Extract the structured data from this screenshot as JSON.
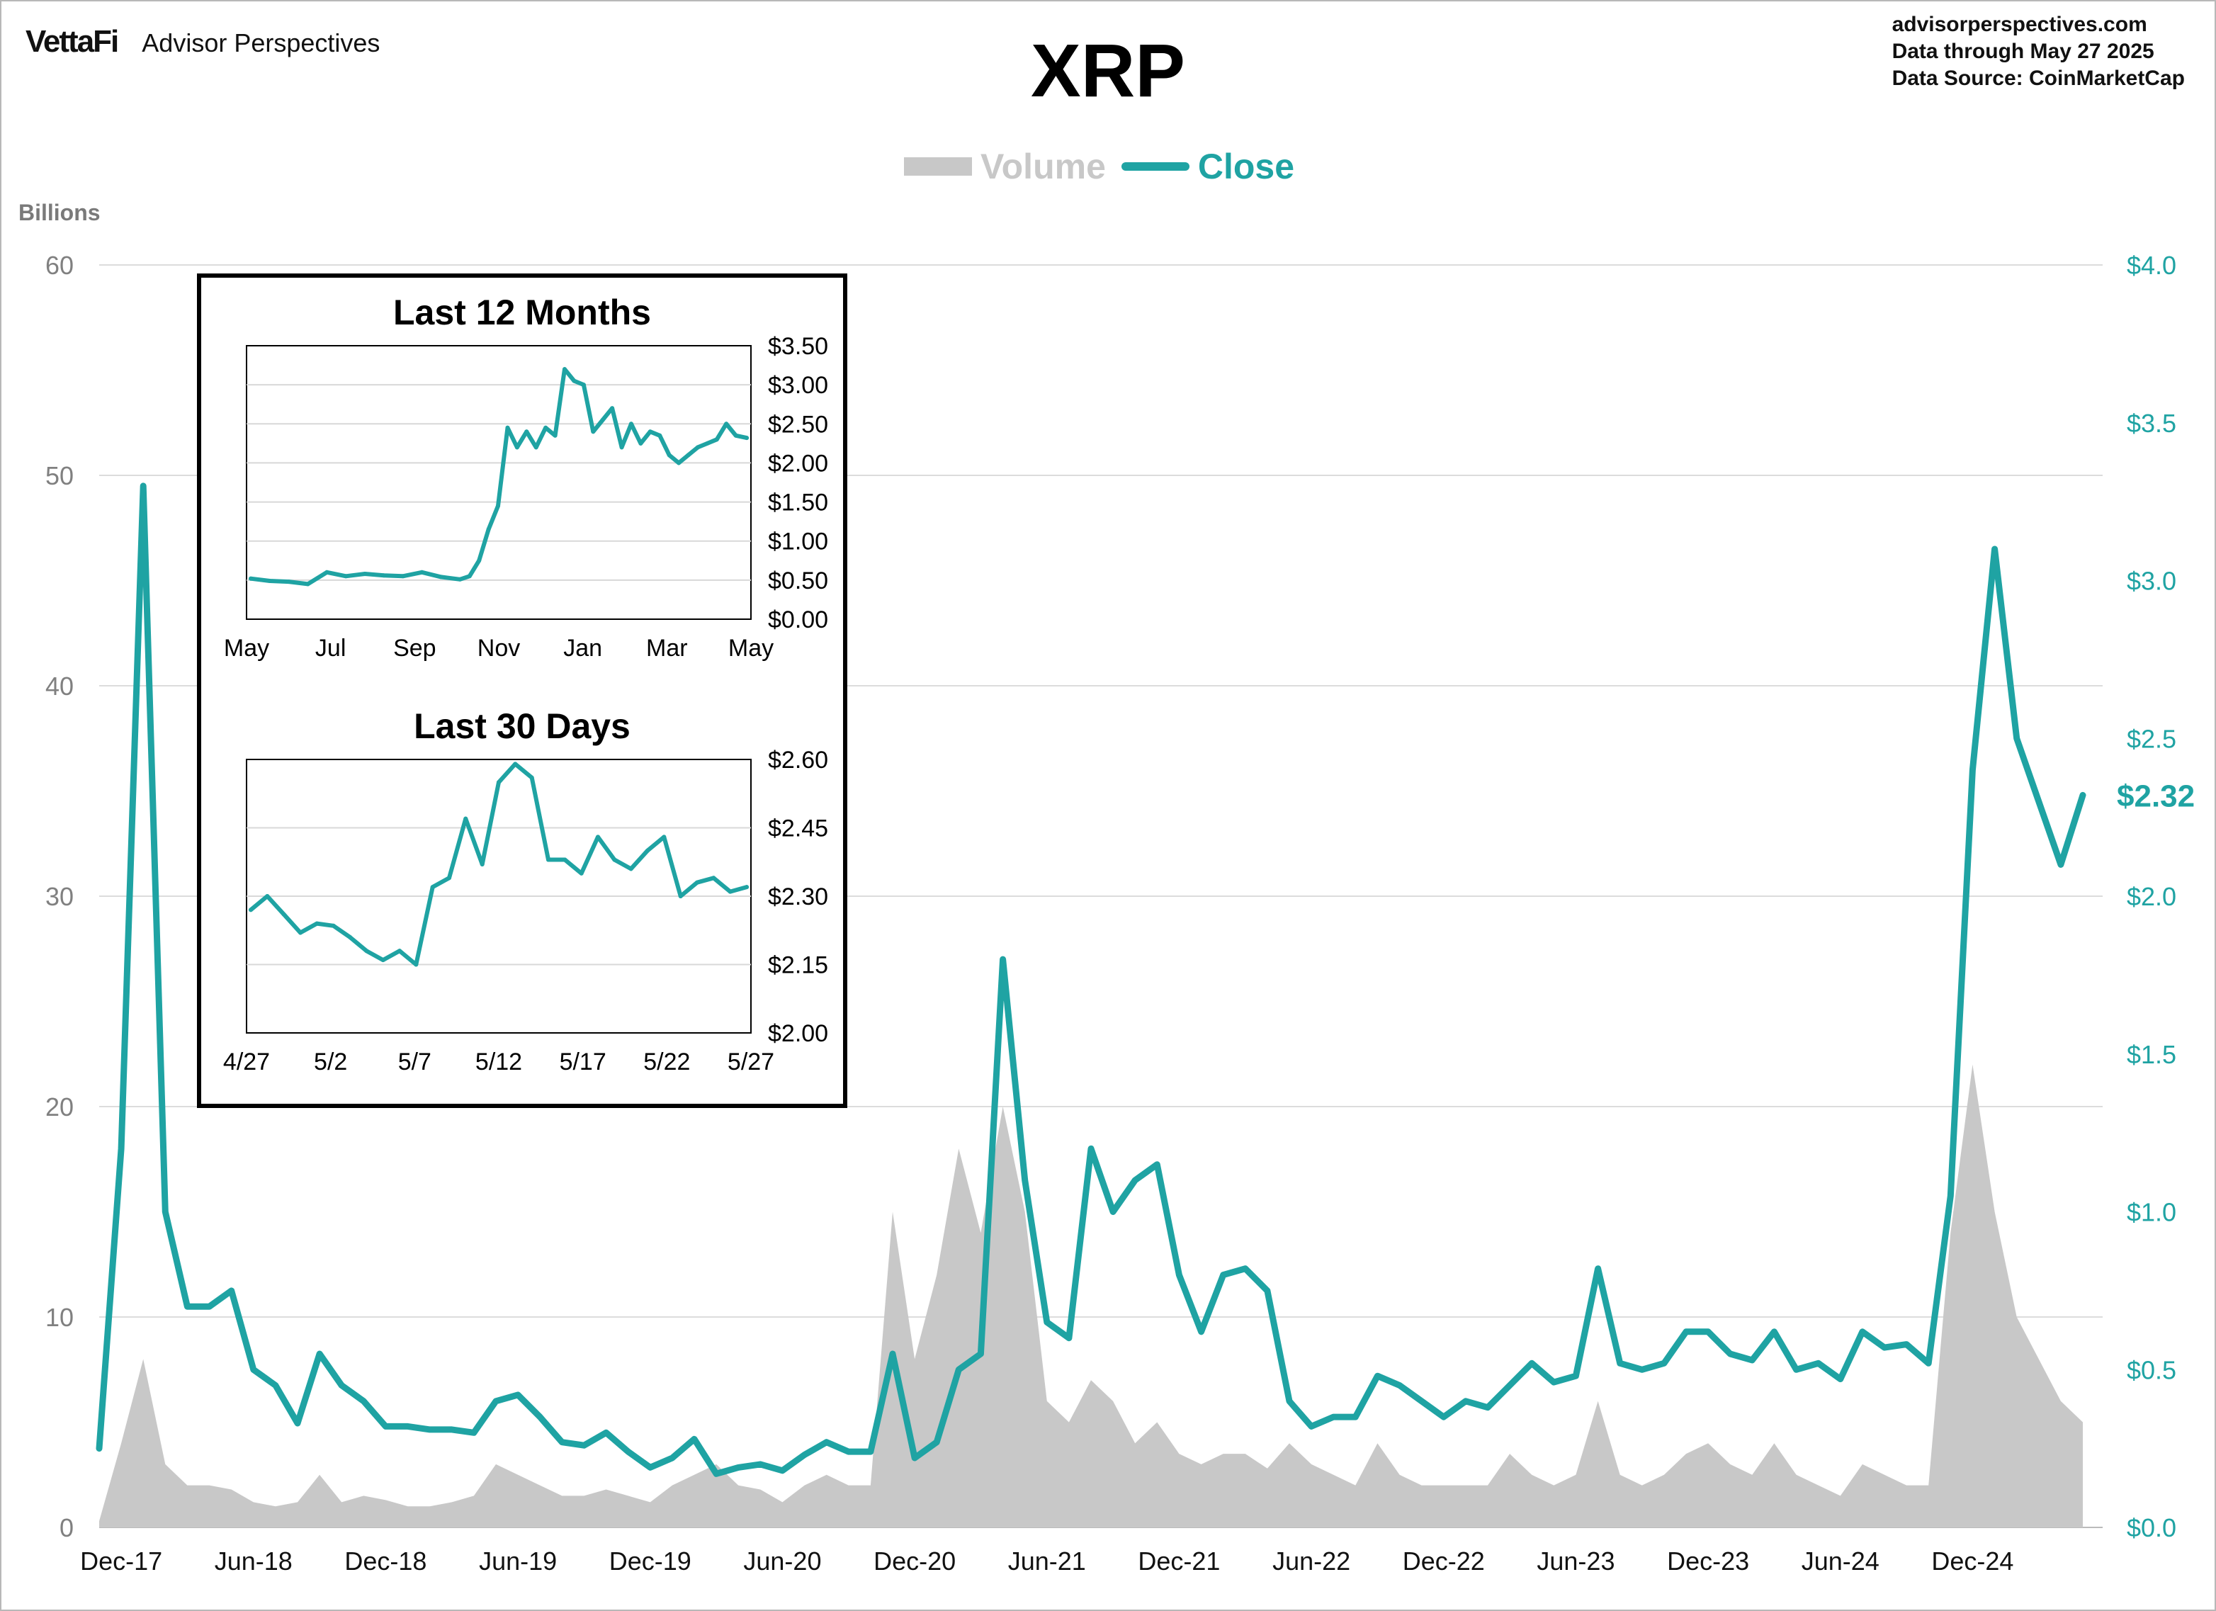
{
  "header": {
    "brand_logo": "VettaFi",
    "brand_name": "Advisor Perspectives",
    "title": "XRP",
    "meta_lines": [
      "advisorperspectives.com",
      "Data through  May 27 2025",
      "Data Source:  CoinMarketCap"
    ]
  },
  "legend": {
    "volume_label": "Volume",
    "close_label": "Close"
  },
  "left_axis_units": "Billions",
  "colors": {
    "close": "#1fa3a3",
    "volume": "#c8c8c8",
    "grid": "#dcdcdc",
    "left_ticks": "#808080"
  },
  "chart_data": [
    {
      "type": "line",
      "title": "XRP",
      "axis_units_left": "Billions",
      "last_value_label": "$2.32",
      "x_tick_labels": [
        "Dec-17",
        "Jun-18",
        "Dec-18",
        "Jun-19",
        "Dec-19",
        "Jun-20",
        "Dec-20",
        "Jun-21",
        "Dec-21",
        "Jun-22",
        "Dec-22",
        "Jun-23",
        "Dec-23",
        "Jun-24",
        "Dec-24"
      ],
      "y_left": {
        "ticks": [
          0,
          10,
          20,
          30,
          40,
          50,
          60
        ],
        "lim": [
          0,
          60
        ]
      },
      "y_right": {
        "tick_labels": [
          "$0.0",
          "$0.5",
          "$1.0",
          "$1.5",
          "$2.0",
          "$2.5",
          "$3.0",
          "$3.5",
          "$4.0"
        ],
        "lim": [
          0,
          4
        ]
      },
      "grid": true,
      "legend_position": "top-center",
      "series": [
        {
          "name": "Close",
          "axis": "right",
          "x": [
            "2017-11",
            "2017-12",
            "2018-01",
            "2018-02",
            "2018-03",
            "2018-04",
            "2018-05",
            "2018-06",
            "2018-07",
            "2018-08",
            "2018-09",
            "2018-10",
            "2018-11",
            "2018-12",
            "2019-01",
            "2019-02",
            "2019-03",
            "2019-04",
            "2019-05",
            "2019-06",
            "2019-07",
            "2019-08",
            "2019-09",
            "2019-10",
            "2019-11",
            "2019-12",
            "2020-01",
            "2020-02",
            "2020-03",
            "2020-04",
            "2020-05",
            "2020-06",
            "2020-07",
            "2020-08",
            "2020-09",
            "2020-10",
            "2020-11",
            "2020-12",
            "2021-01",
            "2021-02",
            "2021-03",
            "2021-04",
            "2021-05",
            "2021-06",
            "2021-07",
            "2021-08",
            "2021-09",
            "2021-10",
            "2021-11",
            "2021-12",
            "2022-01",
            "2022-02",
            "2022-03",
            "2022-04",
            "2022-05",
            "2022-06",
            "2022-07",
            "2022-08",
            "2022-09",
            "2022-10",
            "2022-11",
            "2022-12",
            "2023-01",
            "2023-02",
            "2023-03",
            "2023-04",
            "2023-05",
            "2023-06",
            "2023-07",
            "2023-08",
            "2023-09",
            "2023-10",
            "2023-11",
            "2023-12",
            "2024-01",
            "2024-02",
            "2024-03",
            "2024-04",
            "2024-05",
            "2024-06",
            "2024-07",
            "2024-08",
            "2024-09",
            "2024-10",
            "2024-11",
            "2024-12",
            "2025-01",
            "2025-02",
            "2025-03",
            "2025-04",
            "2025-05"
          ],
          "values": [
            0.25,
            1.2,
            3.3,
            1.0,
            0.7,
            0.7,
            0.75,
            0.5,
            0.45,
            0.33,
            0.55,
            0.45,
            0.4,
            0.32,
            0.32,
            0.31,
            0.31,
            0.3,
            0.4,
            0.42,
            0.35,
            0.27,
            0.26,
            0.3,
            0.24,
            0.19,
            0.22,
            0.28,
            0.17,
            0.19,
            0.2,
            0.18,
            0.23,
            0.27,
            0.24,
            0.24,
            0.55,
            0.22,
            0.27,
            0.5,
            0.55,
            1.8,
            1.1,
            0.65,
            0.6,
            1.2,
            1.0,
            1.1,
            1.15,
            0.8,
            0.62,
            0.8,
            0.82,
            0.75,
            0.4,
            0.32,
            0.35,
            0.35,
            0.48,
            0.45,
            0.4,
            0.35,
            0.4,
            0.38,
            0.45,
            0.52,
            0.46,
            0.48,
            0.82,
            0.52,
            0.5,
            0.52,
            0.62,
            0.62,
            0.55,
            0.53,
            0.62,
            0.5,
            0.52,
            0.47,
            0.62,
            0.57,
            0.58,
            0.52,
            1.05,
            2.4,
            3.1,
            2.5,
            2.3,
            2.1,
            2.32
          ]
        },
        {
          "name": "Volume",
          "axis": "left",
          "unit": "Billions",
          "x": [
            "2017-11",
            "2017-12",
            "2018-01",
            "2018-02",
            "2018-03",
            "2018-04",
            "2018-05",
            "2018-06",
            "2018-07",
            "2018-08",
            "2018-09",
            "2018-10",
            "2018-11",
            "2018-12",
            "2019-01",
            "2019-02",
            "2019-03",
            "2019-04",
            "2019-05",
            "2019-06",
            "2019-07",
            "2019-08",
            "2019-09",
            "2019-10",
            "2019-11",
            "2019-12",
            "2020-01",
            "2020-02",
            "2020-03",
            "2020-04",
            "2020-05",
            "2020-06",
            "2020-07",
            "2020-08",
            "2020-09",
            "2020-10",
            "2020-11",
            "2020-12",
            "2021-01",
            "2021-02",
            "2021-03",
            "2021-04",
            "2021-05",
            "2021-06",
            "2021-07",
            "2021-08",
            "2021-09",
            "2021-10",
            "2021-11",
            "2021-12",
            "2022-01",
            "2022-02",
            "2022-03",
            "2022-04",
            "2022-05",
            "2022-06",
            "2022-07",
            "2022-08",
            "2022-09",
            "2022-10",
            "2022-11",
            "2022-12",
            "2023-01",
            "2023-02",
            "2023-03",
            "2023-04",
            "2023-05",
            "2023-06",
            "2023-07",
            "2023-08",
            "2023-09",
            "2023-10",
            "2023-11",
            "2023-12",
            "2024-01",
            "2024-02",
            "2024-03",
            "2024-04",
            "2024-05",
            "2024-06",
            "2024-07",
            "2024-08",
            "2024-09",
            "2024-10",
            "2024-11",
            "2024-12",
            "2025-01",
            "2025-02",
            "2025-03",
            "2025-04",
            "2025-05"
          ],
          "values": [
            0.3,
            4,
            8,
            3,
            2,
            2,
            1.8,
            1.2,
            1,
            1.2,
            2.5,
            1.2,
            1.5,
            1.3,
            1,
            1,
            1.2,
            1.5,
            3,
            2.5,
            2,
            1.5,
            1.5,
            1.8,
            1.5,
            1.2,
            2,
            2.5,
            3,
            2,
            1.8,
            1.2,
            2,
            2.5,
            2,
            2,
            15,
            8,
            12,
            18,
            14,
            20,
            15,
            6,
            5,
            7,
            6,
            4,
            5,
            3.5,
            3,
            3.5,
            3.5,
            2.8,
            4,
            3,
            2.5,
            2,
            4,
            2.5,
            2,
            2,
            2,
            2,
            3.5,
            2.5,
            2,
            2.5,
            6,
            2.5,
            2,
            2.5,
            3.5,
            4,
            3,
            2.5,
            4,
            2.5,
            2,
            1.5,
            3,
            2.5,
            2,
            2,
            14,
            22,
            15,
            10,
            8,
            6,
            5
          ]
        }
      ]
    },
    {
      "type": "line",
      "title": "Last 12 Months",
      "x_tick_labels": [
        "May",
        "Jul",
        "Sep",
        "Nov",
        "Jan",
        "Mar",
        "May"
      ],
      "y_tick_labels": [
        "$0.00",
        "$0.50",
        "$1.00",
        "$1.50",
        "$2.00",
        "$2.50",
        "$3.00",
        "$3.50"
      ],
      "ylim": [
        0,
        3.5
      ],
      "grid": true,
      "series": [
        {
          "name": "Close",
          "x": [
            "2024-05-27",
            "2024-06-10",
            "2024-06-24",
            "2024-07-08",
            "2024-07-22",
            "2024-08-05",
            "2024-08-19",
            "2024-09-02",
            "2024-09-16",
            "2024-09-30",
            "2024-10-14",
            "2024-10-28",
            "2024-11-04",
            "2024-11-11",
            "2024-11-18",
            "2024-11-25",
            "2024-12-02",
            "2024-12-09",
            "2024-12-16",
            "2024-12-23",
            "2024-12-30",
            "2025-01-06",
            "2025-01-13",
            "2025-01-20",
            "2025-01-27",
            "2025-02-03",
            "2025-02-10",
            "2025-02-17",
            "2025-02-24",
            "2025-03-03",
            "2025-03-10",
            "2025-03-17",
            "2025-03-24",
            "2025-03-31",
            "2025-04-07",
            "2025-04-14",
            "2025-04-21",
            "2025-04-28",
            "2025-05-05",
            "2025-05-12",
            "2025-05-19",
            "2025-05-27"
          ],
          "values": [
            0.52,
            0.49,
            0.48,
            0.45,
            0.6,
            0.55,
            0.58,
            0.56,
            0.55,
            0.6,
            0.54,
            0.51,
            0.55,
            0.75,
            1.15,
            1.45,
            2.45,
            2.2,
            2.4,
            2.2,
            2.45,
            2.35,
            3.2,
            3.05,
            3.0,
            2.4,
            2.55,
            2.7,
            2.2,
            2.5,
            2.25,
            2.4,
            2.35,
            2.1,
            2.0,
            2.1,
            2.2,
            2.25,
            2.3,
            2.5,
            2.35,
            2.32
          ]
        }
      ]
    },
    {
      "type": "line",
      "title": "Last 30 Days",
      "x_tick_labels": [
        "4/27",
        "5/2",
        "5/7",
        "5/12",
        "5/17",
        "5/22",
        "5/27"
      ],
      "y_tick_labels": [
        "$2.00",
        "$2.15",
        "$2.30",
        "$2.45",
        "$2.60"
      ],
      "ylim": [
        2.0,
        2.6
      ],
      "grid": true,
      "series": [
        {
          "name": "Close",
          "x": [
            "4/27",
            "4/28",
            "4/29",
            "4/30",
            "5/1",
            "5/2",
            "5/3",
            "5/4",
            "5/5",
            "5/6",
            "5/7",
            "5/8",
            "5/9",
            "5/10",
            "5/11",
            "5/12",
            "5/13",
            "5/14",
            "5/15",
            "5/16",
            "5/17",
            "5/18",
            "5/19",
            "5/20",
            "5/21",
            "5/22",
            "5/23",
            "5/24",
            "5/25",
            "5/26",
            "5/27"
          ],
          "values": [
            2.27,
            2.3,
            2.26,
            2.22,
            2.24,
            2.235,
            2.21,
            2.18,
            2.16,
            2.18,
            2.15,
            2.32,
            2.34,
            2.47,
            2.37,
            2.55,
            2.59,
            2.56,
            2.38,
            2.38,
            2.35,
            2.43,
            2.38,
            2.36,
            2.4,
            2.43,
            2.3,
            2.33,
            2.34,
            2.31,
            2.32
          ]
        }
      ]
    }
  ]
}
